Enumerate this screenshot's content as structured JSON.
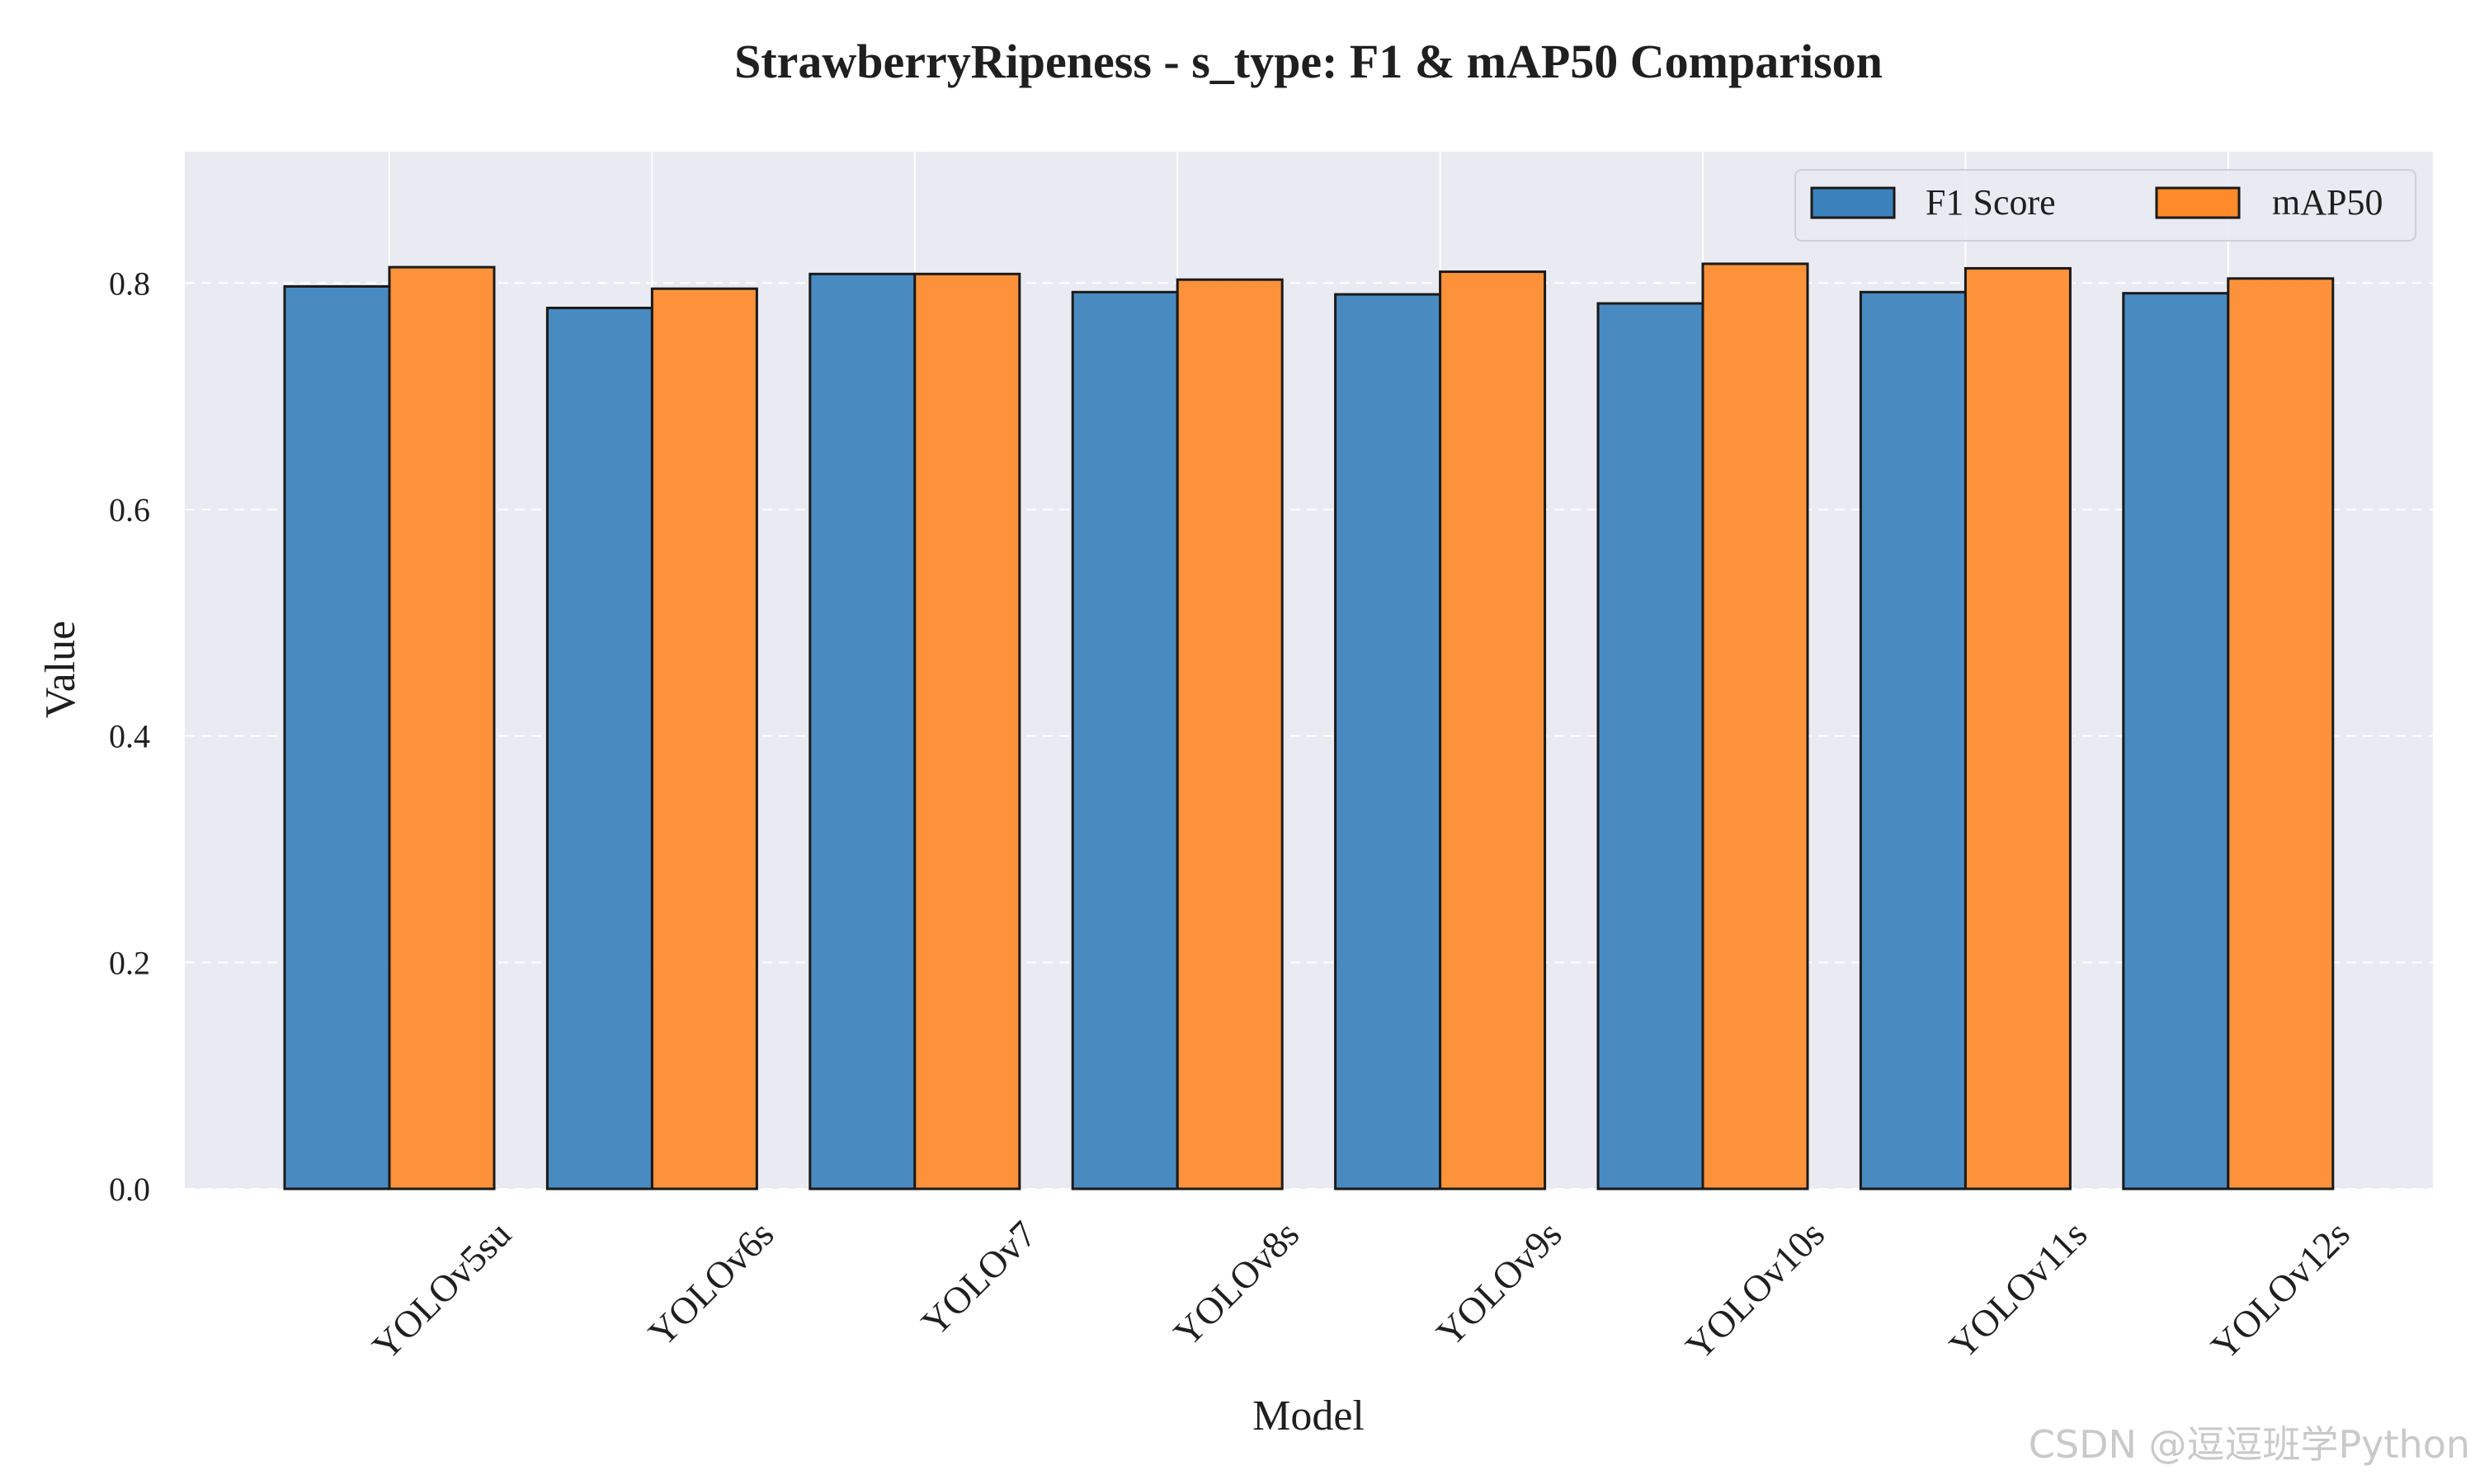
{
  "chart_data": {
    "type": "bar",
    "title": "StrawberryRipeness - s_type: F1 & mAP50 Comparison",
    "xlabel": "Model",
    "ylabel": "Value",
    "categories": [
      "YOLOv5su",
      "YOLOv6s",
      "YOLOv7",
      "YOLOv8s",
      "YOLOv9s",
      "YOLOv10s",
      "YOLOv11s",
      "YOLOv12s"
    ],
    "series": [
      {
        "name": "F1 Score",
        "values": [
          0.797,
          0.778,
          0.808,
          0.792,
          0.79,
          0.782,
          0.792,
          0.791
        ],
        "color": "#3b82bd"
      },
      {
        "name": "mAP50",
        "values": [
          0.814,
          0.795,
          0.808,
          0.803,
          0.81,
          0.817,
          0.813,
          0.804
        ],
        "color": "#ff8a2a"
      }
    ],
    "ylim": [
      0,
      0.916
    ],
    "yticks": [
      "0.0",
      "0.2",
      "0.4",
      "0.6",
      "0.8"
    ],
    "grid": true,
    "legend_position": "top-right",
    "background_color": "#eaeaf2",
    "watermark": "CSDN @逗逗班学Python"
  }
}
